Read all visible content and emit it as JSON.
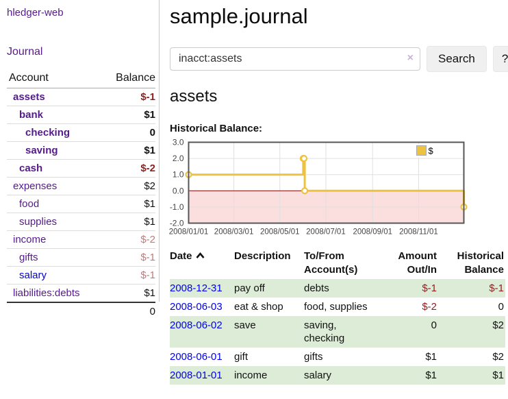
{
  "sidebar": {
    "app_title": "hledger-web",
    "journal_label": "Journal",
    "accounts_table": {
      "headers": {
        "account": "Account",
        "balance": "Balance"
      },
      "accounts": [
        {
          "name": "assets",
          "balance": "$-1",
          "level": 1,
          "in_focus": true
        },
        {
          "name": "bank",
          "balance": "$1",
          "level": 2,
          "in_focus": true
        },
        {
          "name": "checking",
          "balance": "0",
          "level": 3,
          "in_focus": true
        },
        {
          "name": "saving",
          "balance": "$1",
          "level": 3,
          "in_focus": true
        },
        {
          "name": "cash",
          "balance": "$-2",
          "level": 2,
          "in_focus": true
        },
        {
          "name": "expenses",
          "balance": "$2",
          "level": 1,
          "in_focus": false
        },
        {
          "name": "food",
          "balance": "$1",
          "level": 2,
          "in_focus": false
        },
        {
          "name": "supplies",
          "balance": "$1",
          "level": 2,
          "in_focus": false
        },
        {
          "name": "income",
          "balance": "$-2",
          "level": 1,
          "in_focus": false
        },
        {
          "name": "gifts",
          "balance": "$-1",
          "level": 2,
          "in_focus": false
        },
        {
          "name": "salary",
          "balance": "$-1",
          "level": 2,
          "in_focus": false
        },
        {
          "name": "liabilities:debts",
          "balance": "$1",
          "level": 1,
          "in_focus": false
        }
      ],
      "total": "0"
    }
  },
  "main": {
    "title": "sample.journal",
    "search": {
      "value": "inacct:assets",
      "clear_icon": "×",
      "button_label": "Search",
      "help_label": "?"
    },
    "account_heading": "assets",
    "chart_heading": "Historical Balance:"
  },
  "chart_data": {
    "type": "line",
    "step": true,
    "title": "Historical Balance",
    "series": [
      {
        "name": "$",
        "color": "#edc240",
        "points": [
          [
            "2008-01-01",
            1.0
          ],
          [
            "2008-06-01",
            2.0
          ],
          [
            "2008-06-02",
            2.0
          ],
          [
            "2008-06-03",
            0.0
          ],
          [
            "2008-12-31",
            -1.0
          ]
        ]
      }
    ],
    "xrange": [
      "2008-01-01",
      "2008-12-31"
    ],
    "ylim": [
      -2.0,
      3.0
    ],
    "yticks": [
      3,
      2,
      1,
      0,
      -1,
      -2
    ],
    "xticks": [
      "2008/01/01",
      "2008/03/01",
      "2008/05/01",
      "2008/07/01",
      "2008/09/01",
      "2008/11/01"
    ],
    "grid": true,
    "legend_position": "top-right",
    "legend_label": "$",
    "negative_region_color": "#fbdede",
    "zero_line_color": "#8b0000",
    "border_color": "#555555",
    "grid_color": "#e0e0e0"
  },
  "register_table": {
    "headers": {
      "date": "Date",
      "description": "Description",
      "tofrom_l1": "To/From",
      "tofrom_l2": "Account(s)",
      "amount_l1": "Amount",
      "amount_l2": "Out/In",
      "balance_l1": "Historical",
      "balance_l2": "Balance"
    },
    "rows": [
      {
        "date": "2008-12-31",
        "description": "pay off",
        "accounts": "debts",
        "amount": "$-1",
        "balance": "$-1"
      },
      {
        "date": "2008-06-03",
        "description": "eat & shop",
        "accounts": "food, supplies",
        "amount": "$-2",
        "balance": "0"
      },
      {
        "date": "2008-06-02",
        "description": "save",
        "accounts": "saving, checking",
        "amount": "0",
        "balance": "$2"
      },
      {
        "date": "2008-06-01",
        "description": "gift",
        "accounts": "gifts",
        "amount": "$1",
        "balance": "$2"
      },
      {
        "date": "2008-01-01",
        "description": "income",
        "accounts": "salary",
        "amount": "$1",
        "balance": "$1"
      }
    ]
  },
  "colors": {
    "visited_link": "#551a8b",
    "unvisited_link": "#0000ee",
    "negative_strong": "#8f1f1f",
    "negative_soft": "#bf7b7b",
    "zebra_row": "#dcecd7",
    "series_gold": "#edc240"
  }
}
